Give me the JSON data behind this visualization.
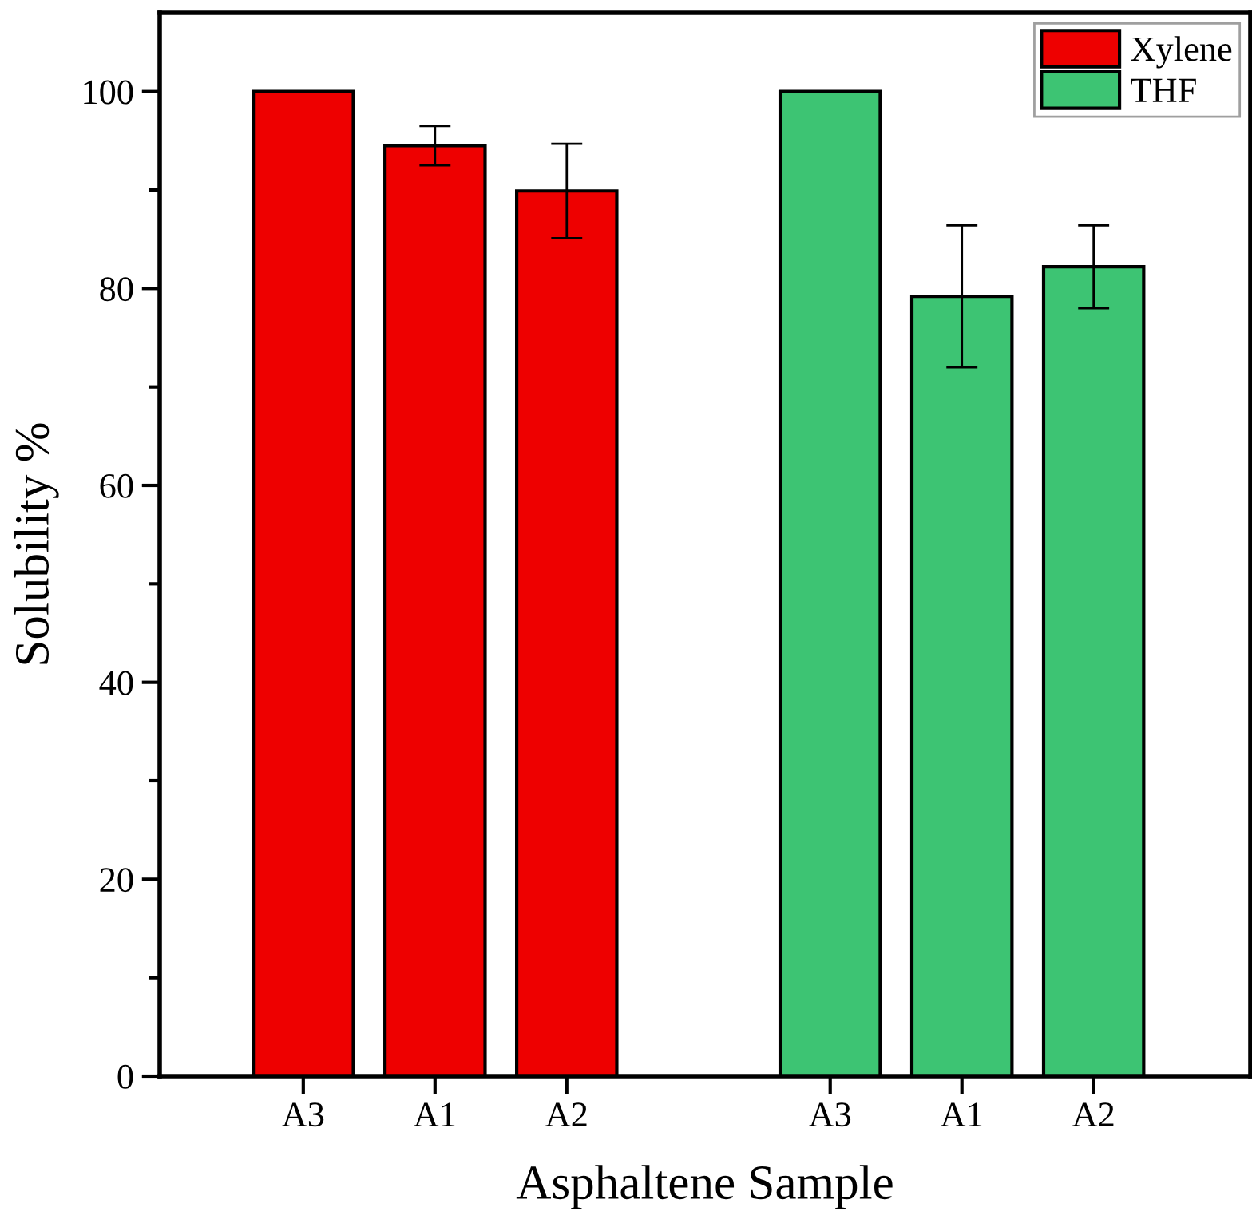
{
  "chart_data": {
    "type": "bar",
    "xlabel": "Asphaltene Sample",
    "ylabel": "Solubility %",
    "categories": [
      "A3",
      "A1",
      "A2",
      null,
      "A3",
      "A1",
      "A2"
    ],
    "series": [
      {
        "name": "Xylene",
        "color": "#ee0000",
        "values": [
          100,
          94.5,
          89.9,
          null,
          null,
          null,
          null
        ],
        "errors": [
          null,
          2.0,
          4.8,
          null,
          null,
          null,
          null
        ]
      },
      {
        "name": "THF",
        "color": "#3dc473",
        "values": [
          null,
          null,
          null,
          null,
          100,
          79.2,
          82.2
        ],
        "errors": [
          null,
          null,
          null,
          null,
          null,
          7.2,
          4.2
        ]
      }
    ],
    "ylim": [
      0,
      108
    ],
    "yticks": [
      0,
      {
        "value": 10,
        "label": null
      },
      20,
      {
        "value": 30,
        "label": null
      },
      40,
      {
        "value": 50,
        "label": null
      },
      60,
      {
        "value": 70,
        "label": null
      },
      80,
      {
        "value": 90,
        "label": null
      },
      100
    ],
    "grid": false,
    "legend": "top right"
  }
}
